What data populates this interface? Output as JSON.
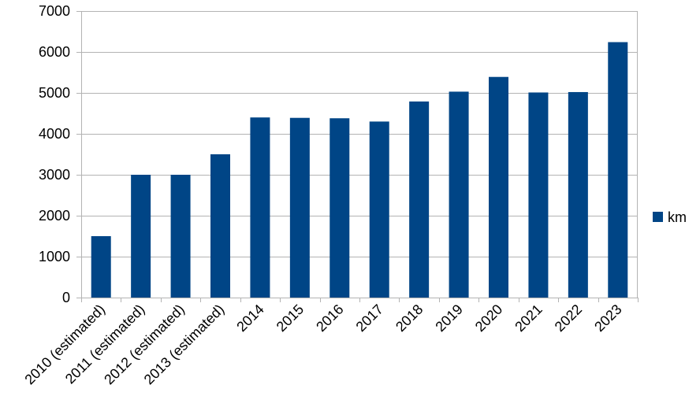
{
  "chart_data": {
    "type": "bar",
    "categories": [
      "2010 (estimated)",
      "2011 (estimated)",
      "2012 (estimated)",
      "2013 (estimated)",
      "2014",
      "2015",
      "2016",
      "2017",
      "2018",
      "2019",
      "2020",
      "2021",
      "2022",
      "2023"
    ],
    "series": [
      {
        "name": "km",
        "color": "#004586",
        "values": [
          1500,
          3000,
          3000,
          3500,
          4400,
          4390,
          4380,
          4300,
          4790,
          5030,
          5390,
          5010,
          5020,
          6240
        ]
      }
    ],
    "title": "",
    "xlabel": "",
    "ylabel": "",
    "ylim": [
      0,
      7000
    ],
    "yticks": [
      0,
      1000,
      2000,
      3000,
      4000,
      5000,
      6000,
      7000
    ],
    "grid": true,
    "legend_position": "right",
    "colors": {
      "gridline": "#b3b3b3",
      "axis": "#b3b3b3",
      "bar": "#004586"
    }
  }
}
